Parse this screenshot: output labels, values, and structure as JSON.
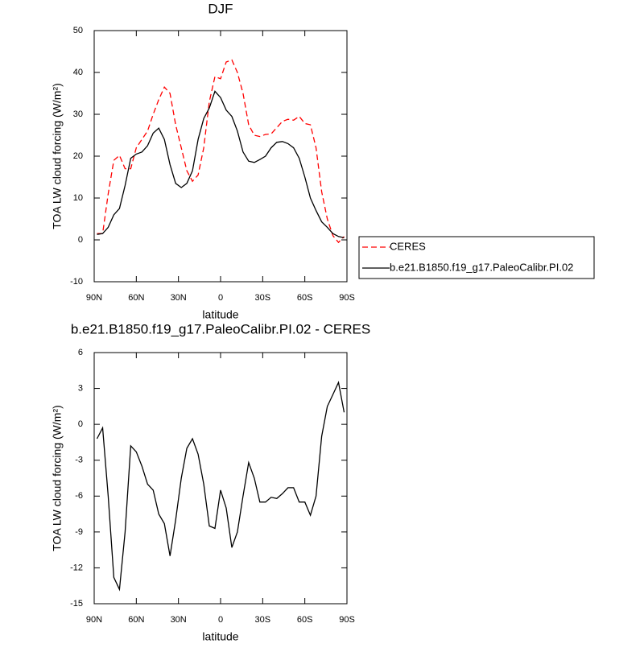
{
  "chart_data": [
    {
      "type": "line",
      "title": "DJF",
      "xlabel": "latitude",
      "ylabel": "TOA LW cloud forcing (W/m²)",
      "x": [
        88,
        84,
        80,
        76,
        72,
        68,
        64,
        60,
        56,
        52,
        48,
        44,
        40,
        36,
        32,
        28,
        24,
        20,
        16,
        12,
        8,
        4,
        0,
        -4,
        -8,
        -12,
        -16,
        -20,
        -24,
        -28,
        -32,
        -36,
        -40,
        -44,
        -48,
        -52,
        -56,
        -60,
        -64,
        -68,
        -72,
        -76,
        -80,
        -84,
        -88
      ],
      "xlim": [
        90,
        -90
      ],
      "xticks": [
        {
          "value": 90,
          "label": "90N"
        },
        {
          "value": 60,
          "label": "60N"
        },
        {
          "value": 30,
          "label": "30N"
        },
        0,
        {
          "value": -30,
          "label": "30S"
        },
        {
          "value": -60,
          "label": "60S"
        },
        {
          "value": -90,
          "label": "90S"
        }
      ],
      "ylim": [
        -10,
        50
      ],
      "yticks": [
        -10,
        0,
        10,
        20,
        30,
        40,
        50
      ],
      "legend": "right-outside",
      "series": [
        {
          "name": "CERES",
          "color": "#ff0000",
          "line_style": "dashed",
          "values": [
            1.5,
            1.5,
            11,
            19,
            20.2,
            17,
            17,
            22,
            24,
            26,
            30,
            33.5,
            36.5,
            35,
            27.5,
            22,
            16.5,
            14,
            15.5,
            22,
            33,
            39,
            38.5,
            42.5,
            43,
            40,
            35,
            27.5,
            25,
            24.7,
            25.2,
            25.3,
            26.8,
            28.3,
            28.8,
            28.6,
            29.5,
            27.8,
            27.5,
            22,
            11.5,
            5,
            1,
            -0.6,
            0.8
          ]
        },
        {
          "name": "b.e21.B1850.f19_g17.PaleoCalibr.PI.02",
          "color": "#000000",
          "line_style": "solid",
          "values": [
            1.3,
            1.5,
            3,
            6,
            7.5,
            13,
            19.5,
            20.5,
            21,
            22.5,
            25.5,
            26.7,
            24,
            18,
            13.5,
            12.5,
            13.5,
            16.5,
            24,
            29,
            31.5,
            35.5,
            34,
            31,
            29.5,
            26,
            21,
            18.8,
            18.5,
            19.2,
            20,
            22,
            23.3,
            23.5,
            23,
            22,
            19.5,
            15,
            10,
            7,
            4.3,
            3,
            1.5,
            0.8,
            0.5
          ]
        }
      ]
    },
    {
      "type": "line",
      "title": "b.e21.B1850.f19_g17.PaleoCalibr.PI.02 - CERES",
      "xlabel": "latitude",
      "ylabel": "TOA LW cloud forcing (W/m²)",
      "x": [
        88,
        84,
        80,
        76,
        72,
        68,
        64,
        60,
        56,
        52,
        48,
        44,
        40,
        36,
        32,
        28,
        24,
        20,
        16,
        12,
        8,
        4,
        0,
        -4,
        -8,
        -12,
        -16,
        -20,
        -24,
        -28,
        -32,
        -36,
        -40,
        -44,
        -48,
        -52,
        -56,
        -60,
        -64,
        -68,
        -72,
        -76,
        -80,
        -84,
        -88
      ],
      "xlim": [
        90,
        -90
      ],
      "xticks": [
        {
          "value": 90,
          "label": "90N"
        },
        {
          "value": 60,
          "label": "60N"
        },
        {
          "value": 30,
          "label": "30N"
        },
        0,
        {
          "value": -30,
          "label": "30S"
        },
        {
          "value": -60,
          "label": "60S"
        },
        {
          "value": -90,
          "label": "90S"
        }
      ],
      "ylim": [
        -15,
        6
      ],
      "yticks": [
        -15,
        -12,
        -9,
        -6,
        -3,
        0,
        3,
        6
      ],
      "series": [
        {
          "color": "#000000",
          "line_style": "solid",
          "values": [
            -1.2,
            -0.3,
            -6,
            -12.8,
            -13.8,
            -9,
            -1.8,
            -2.3,
            -3.5,
            -5,
            -5.5,
            -7.5,
            -8.3,
            -11,
            -8,
            -4.5,
            -2,
            -1.2,
            -2.5,
            -5,
            -8.5,
            -8.7,
            -5.5,
            -7,
            -10.3,
            -9,
            -6,
            -3.2,
            -4.5,
            -6.5,
            -6.5,
            -6.1,
            -6.2,
            -5.8,
            -5.3,
            -5.3,
            -6.5,
            -6.5,
            -7.6,
            -6,
            -1,
            1.5,
            2.5,
            3.5,
            1
          ]
        }
      ]
    }
  ]
}
